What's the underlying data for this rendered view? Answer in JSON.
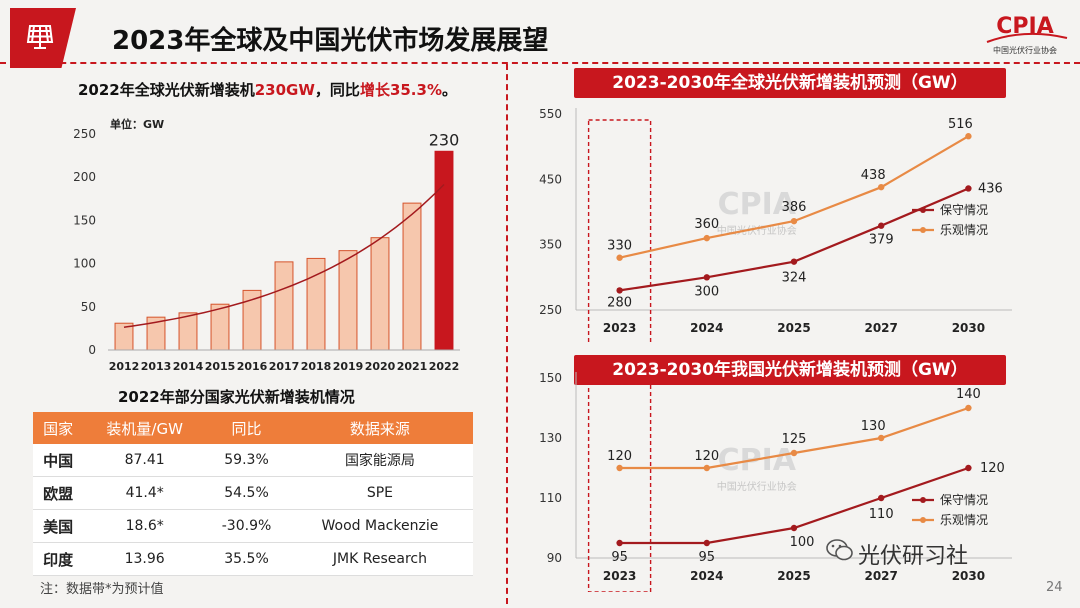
{
  "header": {
    "title": "2023年全球及中国光伏市场发展展望",
    "org_logo_text": "CPIA",
    "org_logo_subtext": "中国光伏行业协会"
  },
  "left_headline": {
    "prefix": "2022年全球光伏新增装机",
    "value": "230GW",
    "middle": "，同比",
    "growth": "增长35.3%",
    "suffix": "。"
  },
  "colors": {
    "brand_red": "#c8171e",
    "bar_fill": "#f6c7ad",
    "bar_stroke": "#d5532b",
    "highlight_bar": "#c8171e",
    "conservative": "#a31a1e",
    "optimistic": "#e88a45",
    "table_header": "#ee7d3a"
  },
  "chart_data": [
    {
      "id": "global_annual_bar",
      "type": "bar",
      "unit_label": "单位：GW",
      "categories": [
        "2012",
        "2013",
        "2014",
        "2015",
        "2016",
        "2017",
        "2018",
        "2019",
        "2020",
        "2021",
        "2022"
      ],
      "values": [
        31,
        38,
        43,
        53,
        69,
        102,
        106,
        115,
        130,
        170,
        230
      ],
      "highlight_label": "230",
      "ylim": [
        0,
        250
      ],
      "yticks": [
        "0",
        "50",
        "100",
        "150",
        "200",
        "250"
      ],
      "trendline": true
    },
    {
      "id": "global_forecast",
      "type": "line",
      "title": "2023-2030年全球光伏新增装机预测（GW）",
      "categories": [
        "2023",
        "2024",
        "2025",
        "2027",
        "2030"
      ],
      "ylim": [
        250,
        550
      ],
      "yticks": [
        "250",
        "350",
        "450",
        "550"
      ],
      "series": [
        {
          "name": "保守情况",
          "values": [
            280,
            300,
            324,
            379,
            436
          ],
          "labels": [
            "280",
            "300",
            "324",
            "379",
            "436"
          ]
        },
        {
          "name": "乐观情况",
          "values": [
            330,
            360,
            386,
            438,
            516
          ],
          "labels": [
            "330",
            "360",
            "386",
            "438",
            "516"
          ]
        }
      ],
      "watermark": "CPIA",
      "watermark_sub": "中国光伏行业协会"
    },
    {
      "id": "china_forecast",
      "type": "line",
      "title": "2023-2030年我国光伏新增装机预测（GW）",
      "categories": [
        "2023",
        "2024",
        "2025",
        "2027",
        "2030"
      ],
      "ylim": [
        90,
        150
      ],
      "yticks": [
        "90",
        "110",
        "130",
        "150"
      ],
      "series": [
        {
          "name": "保守情况",
          "values": [
            95,
            95,
            100,
            110,
            120
          ],
          "labels": [
            "95",
            "95",
            "100",
            "110",
            "120"
          ]
        },
        {
          "name": "乐观情况",
          "values": [
            120,
            120,
            125,
            130,
            140
          ],
          "labels": [
            "120",
            "120",
            "125",
            "130",
            "140"
          ]
        }
      ],
      "watermark": "CPIA",
      "watermark_sub": "中国光伏行业协会"
    }
  ],
  "country_table": {
    "title": "2022年部分国家光伏新增装机情况",
    "headers": [
      "国家",
      "装机量/GW",
      "同比",
      "数据来源"
    ],
    "rows": [
      {
        "country": "中国",
        "capacity": "87.41",
        "yoy": "59.3%",
        "source": "国家能源局"
      },
      {
        "country": "欧盟",
        "capacity": "41.4*",
        "yoy": "54.5%",
        "source": "SPE"
      },
      {
        "country": "美国",
        "capacity": "18.6*",
        "yoy": "-30.9%",
        "source": "Wood Mackenzie"
      },
      {
        "country": "印度",
        "capacity": "13.96",
        "yoy": "35.5%",
        "source": "JMK Research"
      }
    ],
    "note": "注：数据带*为预计值"
  },
  "footer": {
    "wechat_name": "光伏研习社",
    "page_number": "24"
  }
}
